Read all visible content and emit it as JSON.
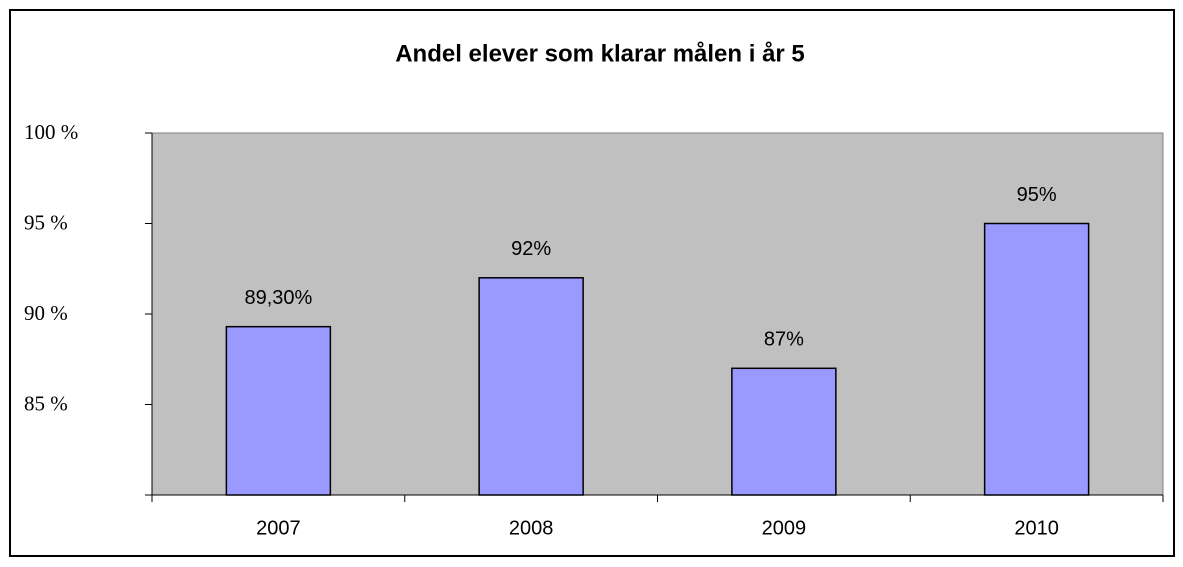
{
  "chart_data": {
    "type": "bar",
    "title": "Andel elever som klarar målen i år 5",
    "categories": [
      "2007",
      "2008",
      "2009",
      "2010"
    ],
    "values": [
      89.3,
      92,
      87,
      95
    ],
    "value_labels": [
      "89,30%",
      "92%",
      "87%",
      "95%"
    ],
    "color": "#9999ff",
    "ylim": [
      80,
      100
    ],
    "yticks": [
      {
        "value": 85,
        "label": "85 %"
      },
      {
        "value": 90,
        "label": "90 %"
      },
      {
        "value": 95,
        "label": "95 %"
      },
      {
        "value": 100,
        "label": "100 %"
      }
    ],
    "grid": false
  }
}
